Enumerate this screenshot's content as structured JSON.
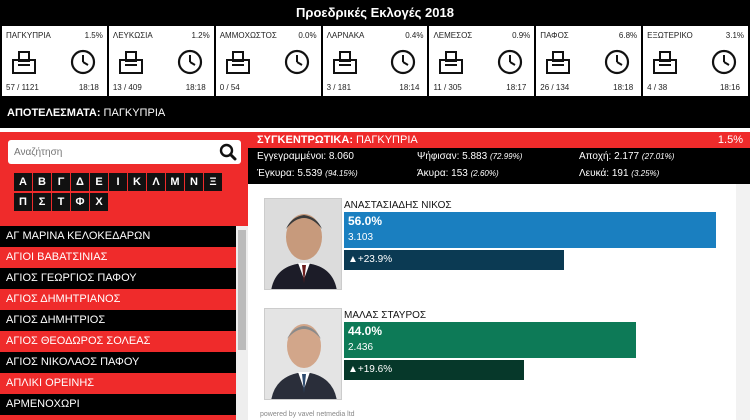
{
  "header": {
    "title": "Προεδρικές Εκλογές 2018"
  },
  "districts": [
    {
      "name": "ΠΑΓΚΥΠΡΙΑ",
      "pct": "1.5%",
      "count": "57 / 1121",
      "time": "18:18"
    },
    {
      "name": "ΛΕΥΚΩΣΙΑ",
      "pct": "1.2%",
      "count": "13 / 409",
      "time": "18:18"
    },
    {
      "name": "ΑΜΜΟΧΩΣΤΟΣ",
      "pct": "0.0%",
      "count": "0 / 54",
      "time": ""
    },
    {
      "name": "ΛΑΡΝΑΚΑ",
      "pct": "0.4%",
      "count": "3 / 181",
      "time": "18:14"
    },
    {
      "name": "ΛΕΜΕΣΟΣ",
      "pct": "0.9%",
      "count": "11 / 305",
      "time": "18:17"
    },
    {
      "name": "ΠΑΦΟΣ",
      "pct": "6.8%",
      "count": "26 / 134",
      "time": "18:18"
    },
    {
      "name": "ΕΞΩΤΕΡΙΚΟ",
      "pct": "3.1%",
      "count": "4 / 38",
      "time": "18:16"
    }
  ],
  "results": {
    "label": "ΑΠΟΤΕΛΕΣΜΑΤΑ:",
    "value": "ΠΑΓΚΥΠΡΙΑ"
  },
  "search": {
    "placeholder": "Αναζήτηση"
  },
  "letters": [
    "Α",
    "Β",
    "Γ",
    "Δ",
    "Ε",
    "Ι",
    "Κ",
    "Λ",
    "Μ",
    "Ν",
    "Ξ",
    "Π",
    "Σ",
    "Τ",
    "Φ",
    "Χ"
  ],
  "communities": [
    "ΑΓ ΜΑΡΙΝΑ ΚΕΛΟΚΕΔΑΡΩΝ",
    "ΑΓΙΟΙ ΒΑΒΑΤΣΙΝΙΑΣ",
    "ΑΓΙΟΣ ΓΕΩΡΓΙΟΣ ΠΑΦΟΥ",
    "ΑΓΙΟΣ ΔΗΜΗΤΡΙΑΝΟΣ",
    "ΑΓΙΟΣ ΔΗΜΗΤΡΙΟΣ",
    "ΑΓΙΟΣ ΘΕΟΔΩΡΟΣ ΣΟΛΕΑΣ",
    "ΑΓΙΟΣ ΝΙΚΟΛΑΟΣ ΠΑΦΟΥ",
    "ΑΠΛΙΚΙ ΟΡΕΙΝΗΣ",
    "ΑΡΜΕΝΟΧΩΡΙ",
    "ΑΡΧΙΜΑΝΔΡΙΤΑ"
  ],
  "summary": {
    "label": "ΣΥΓΚΕΝΤΡΩΤΙΚΑ:",
    "value": "ΠΑΓΚΥΠΡΙΑ",
    "pct": "1.5%",
    "registered": "Εγγεγραμμένοι: 8.060",
    "voted": "Ψήφισαν: 5.883",
    "voted_pct": "(72.99%)",
    "abstain": "Αποχή: 2.177",
    "abstain_pct": "(27.01%)",
    "valid": "Έγκυρα: 5.539",
    "valid_pct": "(94.15%)",
    "invalid": "Άκυρα: 153",
    "invalid_pct": "(2.60%)",
    "blank": "Λευκά: 191",
    "blank_pct": "(3.25%)"
  },
  "candidates": [
    {
      "name": "ΑΝΑΣΤΑΣΙΑΔΗΣ ΝΙΚΟΣ",
      "pct": "56.0%",
      "votes": "3.103",
      "delta": "▲+23.9%",
      "share": 0.56,
      "delta_share": 0.239,
      "color": "#1a7fc0",
      "delta_color": "#0b3a53"
    },
    {
      "name": "ΜΑΛΑΣ ΣΤΑΥΡΟΣ",
      "pct": "44.0%",
      "votes": "2.436",
      "delta": "▲+19.6%",
      "share": 0.44,
      "delta_share": 0.196,
      "color": "#0d7a57",
      "delta_color": "#06382a"
    }
  ],
  "footer": {
    "powered": "powered by vavel netmedia ltd"
  },
  "colors": {
    "accent_red": "#ef2b2b",
    "bar_blue": "#1a7fc0",
    "bar_green": "#0d7a57"
  }
}
